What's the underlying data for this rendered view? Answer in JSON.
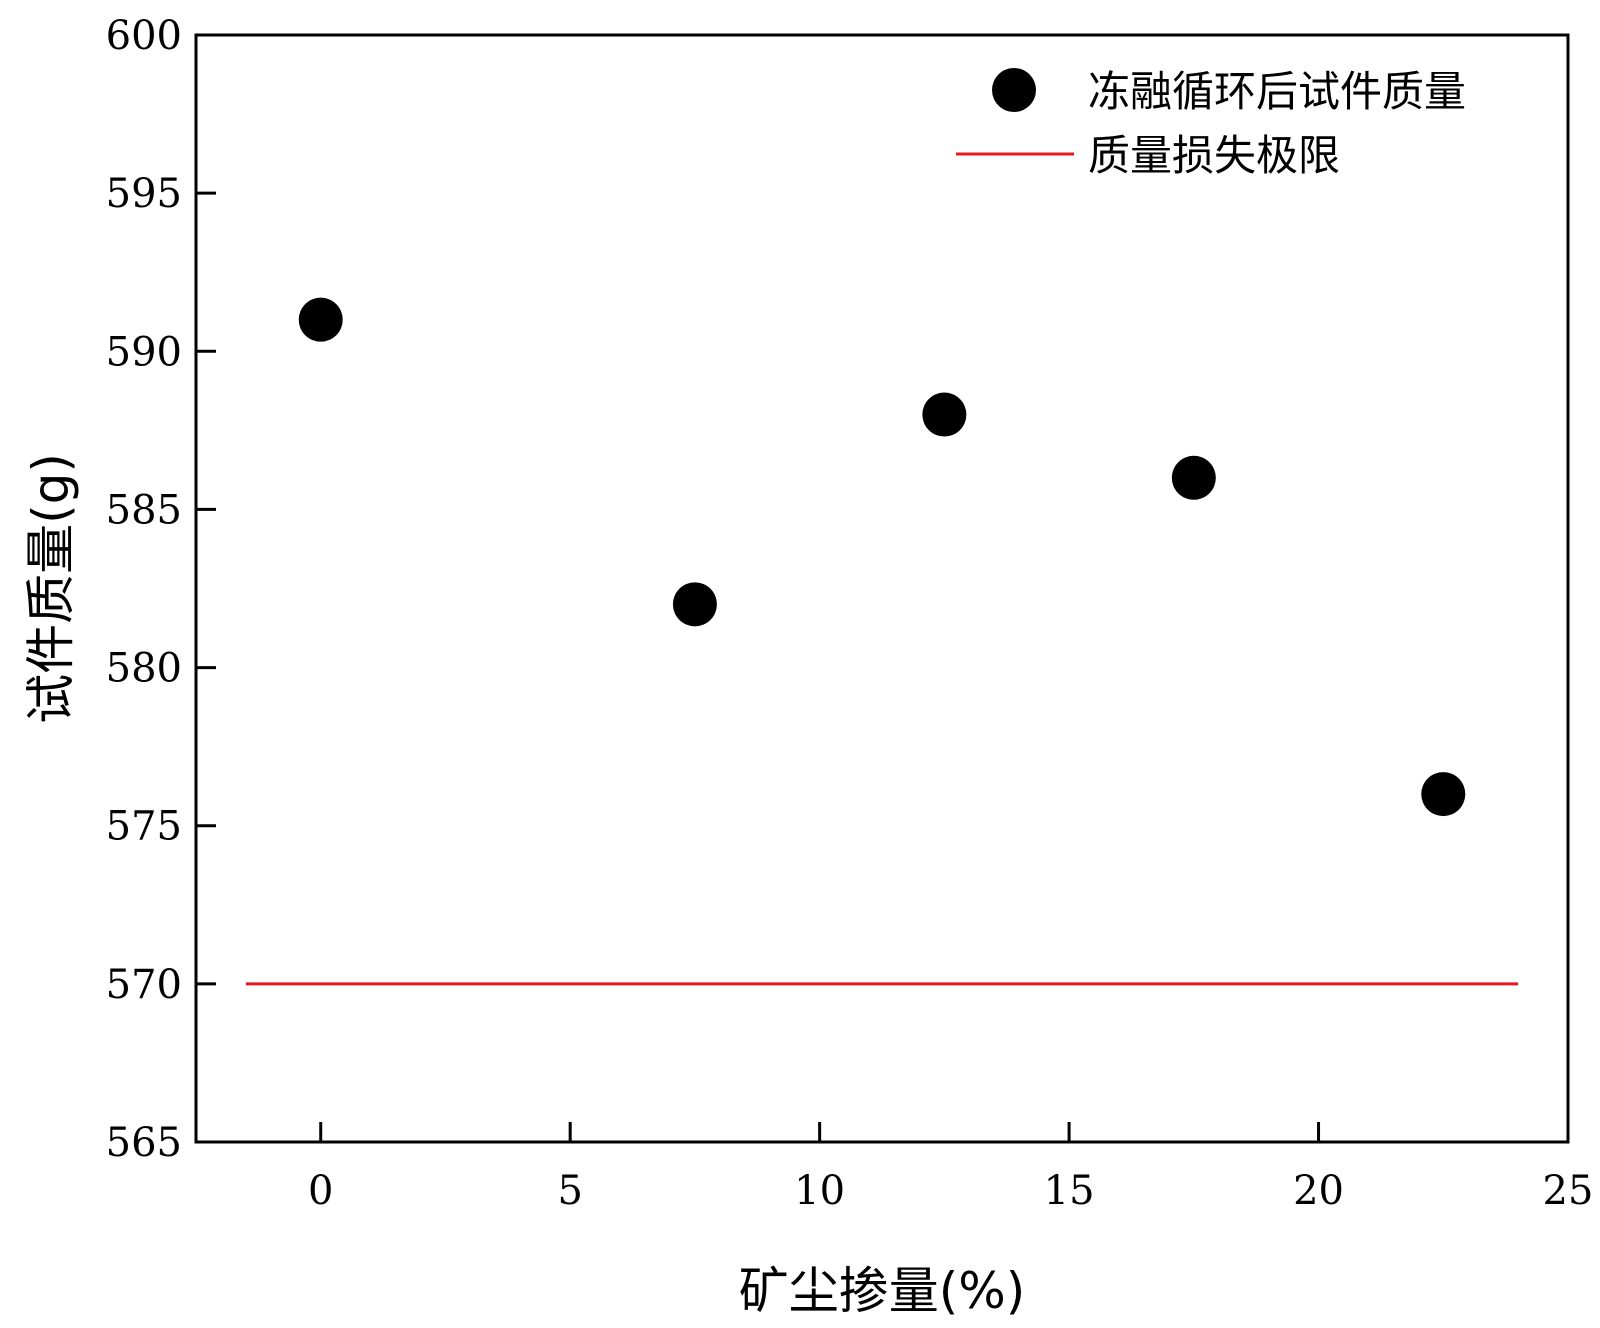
{
  "chart_data": {
    "type": "scatter",
    "xlabel": "矿尘掺量(%)",
    "ylabel": "试件质量(g)",
    "xlim": [
      -2.5,
      25
    ],
    "ylim": [
      565,
      600
    ],
    "xticks": [
      0,
      5,
      10,
      15,
      20,
      25
    ],
    "yticks": [
      565,
      570,
      575,
      580,
      585,
      590,
      595,
      600
    ],
    "grid": false,
    "legend_position": "top-right",
    "series": [
      {
        "name": "冻融循环后试件质量",
        "kind": "scatter",
        "color": "#000000",
        "points": [
          {
            "x": 0,
            "y": 591
          },
          {
            "x": 7.5,
            "y": 582
          },
          {
            "x": 12.5,
            "y": 588
          },
          {
            "x": 17.5,
            "y": 586
          },
          {
            "x": 22.5,
            "y": 576
          }
        ]
      },
      {
        "name": "质量损失极限",
        "kind": "line",
        "color": "#e8171f",
        "points": [
          {
            "x": -1.5,
            "y": 570
          },
          {
            "x": 24,
            "y": 570
          }
        ]
      }
    ]
  }
}
